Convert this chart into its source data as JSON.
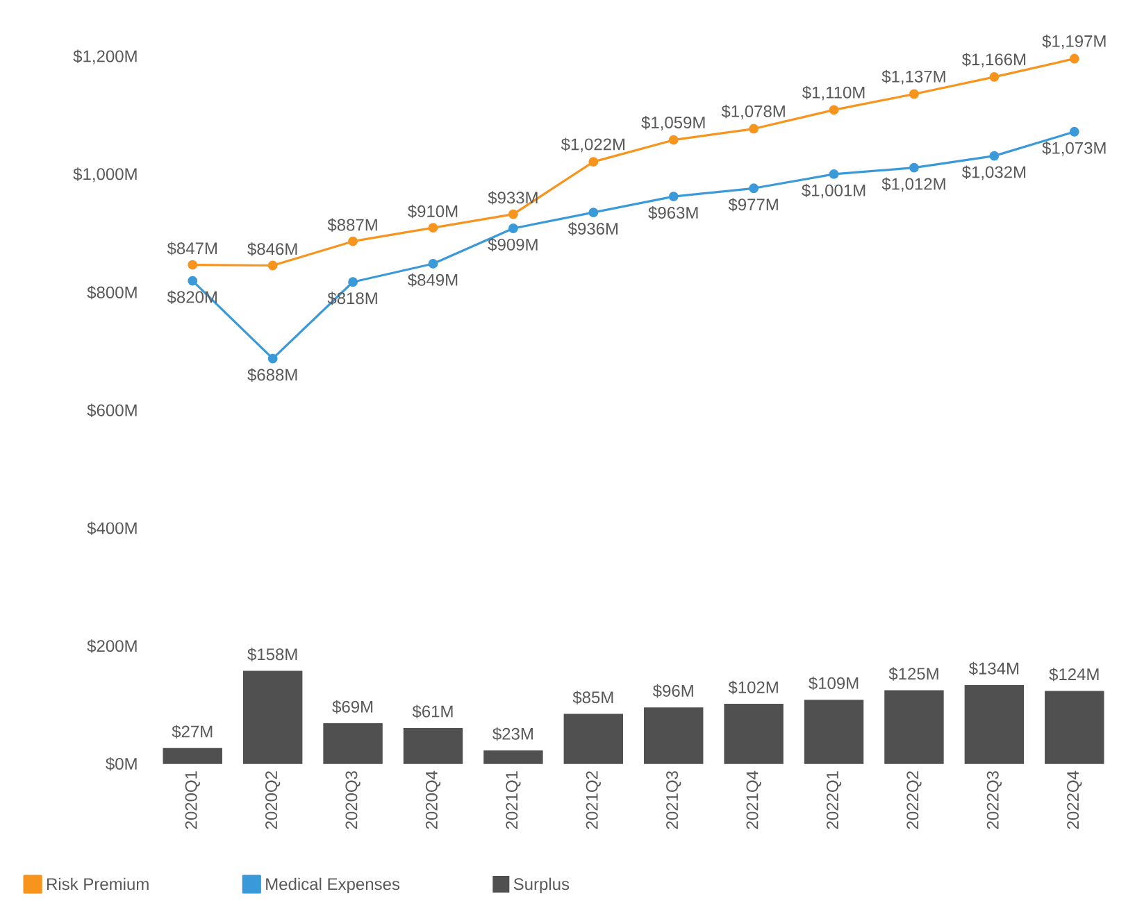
{
  "chart_data": {
    "type": "line",
    "categories": [
      "2020Q1",
      "2020Q2",
      "2020Q3",
      "2020Q4",
      "2021Q1",
      "2021Q2",
      "2021Q3",
      "2021Q4",
      "2022Q1",
      "2022Q2",
      "2022Q3",
      "2022Q4"
    ],
    "series": [
      {
        "name": "Risk Premium",
        "color": "#f7941d",
        "values": [
          847,
          846,
          887,
          910,
          933,
          1022,
          1059,
          1078,
          1110,
          1137,
          1166,
          1197
        ],
        "value_labels": [
          "$847M",
          "$846M",
          "$887M",
          "$910M",
          "$933M",
          "$1,022M",
          "$1,059M",
          "$1,078M",
          "$1,110M",
          "$1,137M",
          "$1,166M",
          "$1,197M"
        ]
      },
      {
        "name": "Medical Expenses",
        "color": "#3a9ad9",
        "values": [
          820,
          688,
          818,
          849,
          909,
          936,
          963,
          977,
          1001,
          1012,
          1032,
          1073
        ],
        "value_labels": [
          "$820M",
          "$688M",
          "$818M",
          "$849M",
          "$909M",
          "$936M",
          "$963M",
          "$977M",
          "$1,001M",
          "$1,012M",
          "$1,032M",
          "$1,073M"
        ]
      },
      {
        "name": "Surplus",
        "type": "bar",
        "color": "#505050",
        "values": [
          27,
          158,
          69,
          61,
          23,
          85,
          96,
          102,
          109,
          125,
          134,
          124
        ],
        "value_labels": [
          "$27M",
          "$158M",
          "$69M",
          "$61M",
          "$23M",
          "$85M",
          "$96M",
          "$102M",
          "$109M",
          "$125M",
          "$134M",
          "$124M"
        ]
      }
    ],
    "ylim": [
      0,
      1200
    ],
    "yticks": [
      {
        "value": 0,
        "label": "$0M"
      },
      {
        "value": 200,
        "label": "$200M"
      },
      {
        "value": 400,
        "label": "$400M"
      },
      {
        "value": 600,
        "label": "$600M"
      },
      {
        "value": 800,
        "label": "$800M"
      },
      {
        "value": 1000,
        "label": "$1,000M"
      },
      {
        "value": 1200,
        "label": "$1,200M"
      }
    ],
    "legend": "bottom left",
    "marker": "circle"
  }
}
